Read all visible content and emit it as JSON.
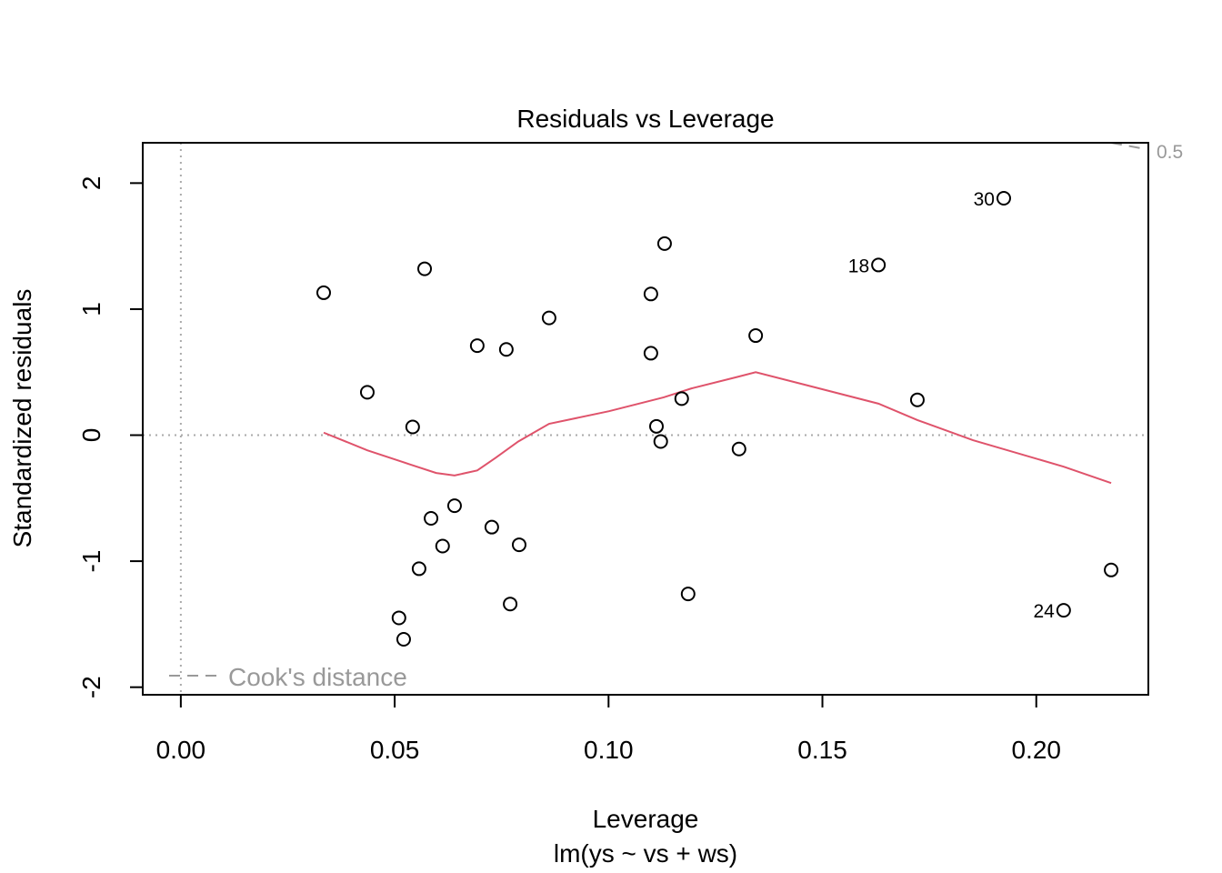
{
  "chart_data": {
    "type": "scatter",
    "title": "Residuals vs Leverage",
    "xlabel": "Leverage",
    "subtitle": "lm(ys ~ vs + ws)",
    "ylabel": "Standardized residuals",
    "xlim": [
      -0.0089,
      0.2262
    ],
    "ylim": [
      -2.06,
      2.32
    ],
    "xticks": [
      0.0,
      0.05,
      0.1,
      0.15,
      0.2
    ],
    "xtick_labels": [
      "0.00",
      "0.05",
      "0.10",
      "0.15",
      "0.20"
    ],
    "yticks": [
      -2,
      -1,
      0,
      1,
      2
    ],
    "ytick_labels": [
      "-2",
      "-1",
      "0",
      "1",
      "2"
    ],
    "grid": false,
    "points": [
      {
        "x": 0.0334,
        "y": 1.13
      },
      {
        "x": 0.057,
        "y": 1.32
      },
      {
        "x": 0.0436,
        "y": 0.34
      },
      {
        "x": 0.0542,
        "y": 0.065
      },
      {
        "x": 0.0693,
        "y": 0.71
      },
      {
        "x": 0.0761,
        "y": 0.68
      },
      {
        "x": 0.0861,
        "y": 0.93
      },
      {
        "x": 0.1131,
        "y": 1.52
      },
      {
        "x": 0.1099,
        "y": 1.12
      },
      {
        "x": 0.1099,
        "y": 0.65
      },
      {
        "x": 0.1171,
        "y": 0.29
      },
      {
        "x": 0.1112,
        "y": 0.07
      },
      {
        "x": 0.1122,
        "y": -0.05
      },
      {
        "x": 0.1344,
        "y": 0.79
      },
      {
        "x": 0.1305,
        "y": -0.11
      },
      {
        "x": 0.1631,
        "y": 1.35,
        "label": "18"
      },
      {
        "x": 0.1924,
        "y": 1.88,
        "label": "30"
      },
      {
        "x": 0.1722,
        "y": 0.28
      },
      {
        "x": 0.064,
        "y": -0.56
      },
      {
        "x": 0.0585,
        "y": -0.66
      },
      {
        "x": 0.0727,
        "y": -0.73
      },
      {
        "x": 0.0612,
        "y": -0.88
      },
      {
        "x": 0.0791,
        "y": -0.87
      },
      {
        "x": 0.0557,
        "y": -1.06
      },
      {
        "x": 0.077,
        "y": -1.34
      },
      {
        "x": 0.1186,
        "y": -1.26
      },
      {
        "x": 0.051,
        "y": -1.45
      },
      {
        "x": 0.0521,
        "y": -1.62
      },
      {
        "x": 0.2064,
        "y": -1.39,
        "label": "24"
      },
      {
        "x": 0.2175,
        "y": -1.07
      }
    ],
    "smooth_line": {
      "color": "#DF536B",
      "x": [
        0.0334,
        0.0436,
        0.0534,
        0.0597,
        0.064,
        0.0693,
        0.0736,
        0.0789,
        0.0861,
        0.1001,
        0.1129,
        0.1193,
        0.1299,
        0.1344,
        0.1631,
        0.1722,
        0.1852,
        0.2064,
        0.2175
      ],
      "y": [
        0.02,
        -0.12,
        -0.23,
        -0.3,
        -0.32,
        -0.28,
        -0.18,
        -0.05,
        0.09,
        0.19,
        0.3,
        0.37,
        0.46,
        0.5,
        0.25,
        0.12,
        -0.04,
        -0.25,
        -0.38
      ]
    },
    "reference_lines": {
      "h": 0,
      "v": 0,
      "color": "#AAAAAA",
      "style": "dotted"
    },
    "cooks_distance": {
      "legend_label": "Cook's distance",
      "contour_label": "0.5",
      "color": "#999999"
    },
    "legend_placement": "bottom-left"
  }
}
